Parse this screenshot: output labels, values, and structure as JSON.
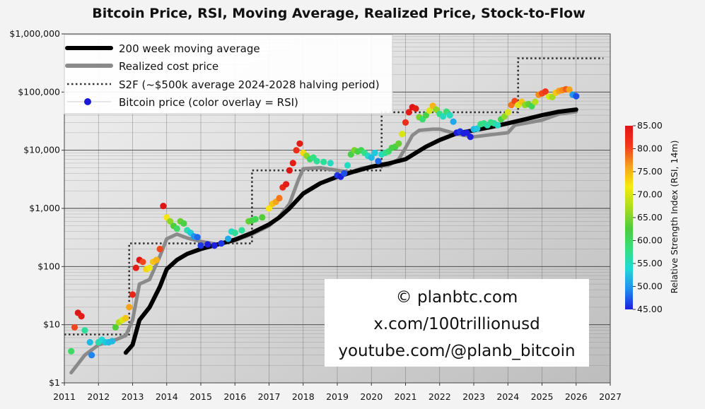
{
  "chart_data": {
    "type": "scatter",
    "title": "Bitcoin Price, RSI, Moving Average, Realized Price, Stock-to-Flow",
    "x_ticks": [
      "2011",
      "2012",
      "2013",
      "2014",
      "2015",
      "2016",
      "2017",
      "2018",
      "2019",
      "2020",
      "2021",
      "2022",
      "2023",
      "2024",
      "2025",
      "2026",
      "2027"
    ],
    "xlim": [
      2011,
      2027
    ],
    "y_scale": "log",
    "ylim": [
      1,
      1000000
    ],
    "y_ticks": [
      {
        "v": 1,
        "label": "$1"
      },
      {
        "v": 10,
        "label": "$10"
      },
      {
        "v": 100,
        "label": "$100"
      },
      {
        "v": 1000,
        "label": "$1,000"
      },
      {
        "v": 10000,
        "label": "$10,000"
      },
      {
        "v": 100000,
        "label": "$100,000"
      },
      {
        "v": 1000000,
        "label": "$1,000,000"
      }
    ],
    "legend": [
      {
        "label": "200 week moving average",
        "style": "thick-black"
      },
      {
        "label": "Realized cost price",
        "style": "thick-gray"
      },
      {
        "label": "S2F (~$500k average 2024-2028 halving period)",
        "style": "dotted"
      },
      {
        "label": "Bitcoin price (color overlay = RSI)",
        "style": "dot"
      }
    ],
    "legend_position": "top-left",
    "colorbar": {
      "label": "Relative Strength Index (RSI, 14m)",
      "ticks": [
        "85.00",
        "80.00",
        "75.00",
        "70.00",
        "65.00",
        "60.00",
        "55.00",
        "50.00",
        "45.00"
      ],
      "range": [
        45,
        85
      ],
      "colors": [
        "#1d1de0",
        "#1d8ff2",
        "#21d8d8",
        "#34e07c",
        "#4ccc3a",
        "#a6dc1e",
        "#f7ea12",
        "#f6a11a",
        "#f2391b",
        "#e01414"
      ]
    },
    "series": [
      {
        "name": "200 week moving average",
        "x": [
          2012.8,
          2013.0,
          2013.2,
          2013.5,
          2013.8,
          2014.0,
          2014.3,
          2014.6,
          2015.0,
          2015.5,
          2016.0,
          2016.5,
          2017.0,
          2017.3,
          2017.6,
          2018.0,
          2018.5,
          2019.0,
          2019.5,
          2020.0,
          2020.5,
          2021.0,
          2021.3,
          2021.6,
          2022.0,
          2022.5,
          2023.0,
          2023.5,
          2024.0,
          2024.5,
          2025.0,
          2025.5,
          2026.0
        ],
        "y": [
          3.3,
          4.5,
          12,
          20,
          45,
          90,
          130,
          165,
          200,
          240,
          290,
          380,
          530,
          700,
          1000,
          1800,
          2700,
          3500,
          4300,
          5200,
          5900,
          7000,
          9000,
          11500,
          15000,
          19500,
          22000,
          25000,
          29000,
          34000,
          40000,
          46000,
          50000
        ]
      },
      {
        "name": "Realized cost price",
        "x": [
          2011.2,
          2011.6,
          2012.0,
          2012.5,
          2012.8,
          2013.0,
          2013.2,
          2013.5,
          2013.8,
          2014.0,
          2014.3,
          2014.6,
          2015.0,
          2015.5,
          2016.0,
          2016.5,
          2017.0,
          2017.3,
          2017.6,
          2017.85,
          2018.0,
          2018.5,
          2019.0,
          2019.4,
          2019.7,
          2020.0,
          2020.5,
          2020.8,
          2021.0,
          2021.2,
          2021.4,
          2021.8,
          2022.0,
          2022.5,
          2023.0,
          2023.5,
          2024.0,
          2024.2,
          2024.5,
          2025.0,
          2025.5,
          2026.0
        ],
        "y": [
          1.5,
          3,
          4.5,
          5.5,
          6.5,
          12,
          50,
          60,
          150,
          300,
          360,
          310,
          270,
          240,
          280,
          360,
          500,
          720,
          1200,
          3000,
          4800,
          5000,
          4500,
          4200,
          4900,
          5200,
          5500,
          7000,
          11000,
          18000,
          22000,
          23000,
          23000,
          19000,
          17000,
          18500,
          20000,
          27000,
          29000,
          33000,
          42000,
          46000
        ]
      },
      {
        "name": "S2F (~$500k average 2024-2028 halving period)",
        "x": [
          2011.0,
          2012.9,
          2012.9,
          2016.5,
          2016.5,
          2020.3,
          2020.3,
          2024.3,
          2024.3,
          2026.8
        ],
        "y": [
          6.8,
          6.8,
          250,
          250,
          4500,
          4500,
          45000,
          45000,
          380000,
          380000
        ]
      },
      {
        "name": "Bitcoin price",
        "x": [
          2011.2,
          2011.3,
          2011.4,
          2011.5,
          2011.6,
          2011.75,
          2011.8,
          2012.0,
          2012.1,
          2012.2,
          2012.3,
          2012.4,
          2012.5,
          2012.6,
          2012.7,
          2012.8,
          2012.9,
          2013.0,
          2013.1,
          2013.2,
          2013.3,
          2013.4,
          2013.5,
          2013.6,
          2013.7,
          2013.8,
          2013.9,
          2014.0,
          2014.1,
          2014.2,
          2014.3,
          2014.4,
          2014.5,
          2014.6,
          2014.7,
          2014.8,
          2014.9,
          2015.0,
          2015.2,
          2015.4,
          2015.6,
          2015.8,
          2015.9,
          2016.0,
          2016.2,
          2016.4,
          2016.5,
          2016.6,
          2016.8,
          2017.0,
          2017.1,
          2017.2,
          2017.3,
          2017.4,
          2017.5,
          2017.6,
          2017.7,
          2017.8,
          2017.9,
          2018.0,
          2018.1,
          2018.2,
          2018.3,
          2018.4,
          2018.6,
          2018.8,
          2019.0,
          2019.1,
          2019.2,
          2019.3,
          2019.4,
          2019.5,
          2019.6,
          2019.7,
          2019.8,
          2019.9,
          2020.0,
          2020.1,
          2020.2,
          2020.3,
          2020.4,
          2020.5,
          2020.6,
          2020.7,
          2020.8,
          2020.9,
          2021.0,
          2021.1,
          2021.2,
          2021.3,
          2021.4,
          2021.5,
          2021.6,
          2021.7,
          2021.8,
          2021.9,
          2022.0,
          2022.1,
          2022.2,
          2022.3,
          2022.4,
          2022.5,
          2022.6,
          2022.7,
          2022.8,
          2022.9,
          2023.0,
          2023.1,
          2023.2,
          2023.3,
          2023.4,
          2023.5,
          2023.6,
          2023.7,
          2023.8,
          2023.9,
          2024.0,
          2024.1,
          2024.2,
          2024.3,
          2024.4,
          2024.5,
          2024.6,
          2024.7,
          2024.8,
          2024.9,
          2025.0,
          2025.1,
          2025.2,
          2025.3,
          2025.4,
          2025.5,
          2025.6,
          2025.7,
          2025.8,
          2025.9,
          2026.0
        ],
        "y": [
          3.5,
          9,
          16,
          14,
          8,
          5,
          3,
          5,
          5.5,
          5,
          5,
          5.2,
          9,
          11,
          12,
          13,
          20,
          33,
          95,
          130,
          120,
          90,
          95,
          120,
          130,
          200,
          1100,
          700,
          600,
          500,
          450,
          600,
          550,
          420,
          380,
          330,
          320,
          230,
          240,
          230,
          250,
          300,
          400,
          380,
          420,
          600,
          620,
          650,
          700,
          1000,
          1200,
          1300,
          1500,
          2300,
          2600,
          4500,
          6000,
          10000,
          13000,
          9000,
          8000,
          7000,
          7500,
          6500,
          6300,
          6000,
          3700,
          3500,
          4000,
          5500,
          8500,
          10000,
          9500,
          10000,
          9000,
          8000,
          7500,
          9000,
          6500,
          8500,
          9000,
          9500,
          11000,
          11500,
          13000,
          19000,
          30000,
          45000,
          55000,
          52000,
          37000,
          34000,
          40000,
          48000,
          58000,
          50000,
          42000,
          38000,
          46000,
          40000,
          31000,
          20000,
          21000,
          19500,
          20000,
          17000,
          23000,
          23500,
          28000,
          29000,
          27000,
          30000,
          29000,
          27000,
          34000,
          38000,
          45000,
          60000,
          70000,
          60000,
          68000,
          60000,
          62000,
          57000,
          68000,
          90000,
          95000,
          102000,
          84000,
          82000,
          97000,
          105000,
          108000,
          112000,
          110000,
          90000,
          85000
        ],
        "rsi": [
          60,
          80,
          85,
          84,
          57,
          52,
          49,
          56,
          54,
          53,
          52,
          52,
          63,
          68,
          70,
          74,
          76,
          83,
          84,
          85,
          80,
          73,
          71,
          74,
          75,
          80,
          85,
          72,
          66,
          63,
          60,
          64,
          62,
          56,
          53,
          50,
          48,
          46,
          45,
          45,
          46,
          51,
          55,
          57,
          57,
          64,
          62,
          61,
          63,
          72,
          74,
          76,
          78,
          83,
          84,
          85,
          84,
          82,
          84,
          73,
          66,
          60,
          58,
          57,
          57,
          55,
          46,
          45,
          47,
          55,
          62,
          65,
          62,
          61,
          58,
          55,
          52,
          53,
          48,
          55,
          57,
          59,
          62,
          62,
          64,
          70,
          82,
          84,
          85,
          84,
          65,
          59,
          62,
          70,
          75,
          66,
          58,
          55,
          59,
          55,
          51,
          45,
          46,
          45,
          45,
          45,
          52,
          53,
          58,
          58,
          56,
          58,
          57,
          55,
          62,
          66,
          70,
          78,
          80,
          70,
          74,
          66,
          64,
          61,
          68,
          77,
          80,
          81,
          70,
          67,
          74,
          76,
          77,
          79,
          76,
          50,
          47
        ]
      }
    ]
  },
  "credits": [
    "© planbtc.com",
    "x.com/100trillionusd",
    "youtube.com/@planb_bitcoin"
  ]
}
